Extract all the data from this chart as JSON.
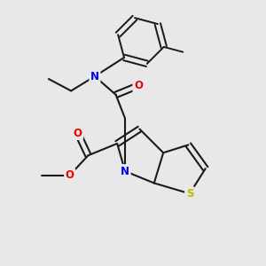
{
  "bg": "#e8e8e8",
  "colors": {
    "N": "#0000ee",
    "O": "#ee0000",
    "S": "#bbbb00",
    "bond": "#1a1a1a"
  },
  "lw": 1.5,
  "dbl_sep": 0.11,
  "figsize": [
    3.0,
    3.0
  ],
  "dpi": 100,
  "xlim": [
    0,
    10
  ],
  "ylim": [
    0,
    10
  ]
}
